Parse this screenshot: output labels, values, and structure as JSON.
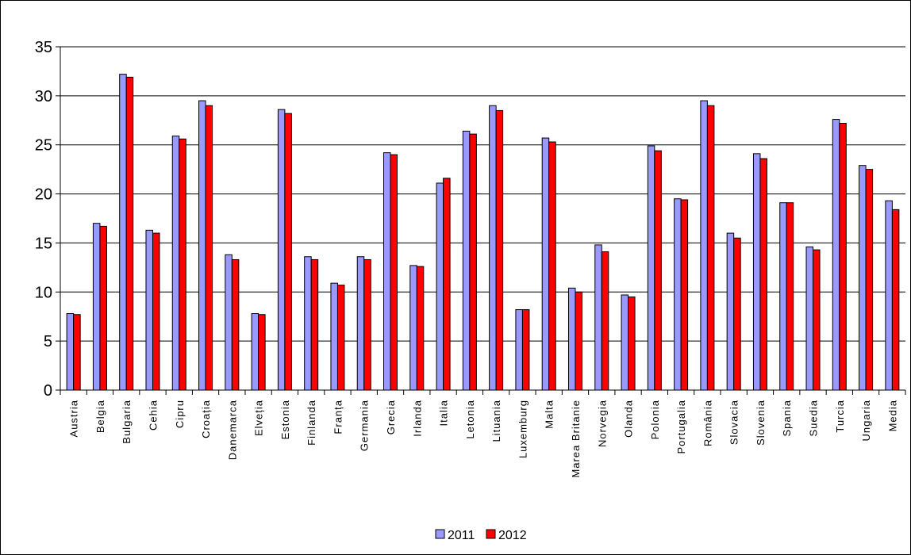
{
  "chart_data": {
    "type": "bar",
    "title": "",
    "xlabel": "",
    "ylabel": "",
    "ylim": [
      0,
      35
    ],
    "yticks": [
      0,
      5,
      10,
      15,
      20,
      25,
      30,
      35
    ],
    "grid": true,
    "legend_position": "bottom-center",
    "categories": [
      "Austria",
      "Belgia",
      "Bulgaria",
      "Cehia",
      "Cipru",
      "Croația",
      "Danemarca",
      "Elveția",
      "Estonia",
      "Finlanda",
      "Franța",
      "Germania",
      "Grecia",
      "Irlanda",
      "Italia",
      "Letonia",
      "Lituania",
      "Luxemburg",
      "Malta",
      "Marea Britanie",
      "Norvegia",
      "Olanda",
      "Polonia",
      "Portugalia",
      "România",
      "Slovacia",
      "Slovenia",
      "Spania",
      "Suedia",
      "Turcia",
      "Ungaria",
      "Media"
    ],
    "series": [
      {
        "name": "2011",
        "color": "#9999ff",
        "values": [
          7.8,
          17.0,
          32.2,
          16.3,
          25.9,
          29.5,
          13.8,
          7.8,
          28.6,
          13.6,
          10.9,
          13.6,
          24.2,
          12.7,
          21.1,
          26.4,
          29.0,
          8.2,
          25.7,
          10.4,
          14.8,
          9.7,
          24.9,
          19.5,
          29.5,
          16.0,
          24.1,
          19.1,
          14.6,
          27.6,
          22.9,
          19.3
        ]
      },
      {
        "name": "2012",
        "color": "#ff0000",
        "values": [
          7.7,
          16.7,
          31.9,
          16.0,
          25.6,
          29.0,
          13.3,
          7.7,
          28.2,
          13.3,
          10.7,
          13.3,
          24.0,
          12.6,
          21.6,
          26.1,
          28.5,
          8.2,
          25.3,
          10.0,
          14.1,
          9.5,
          24.4,
          19.4,
          29.0,
          15.5,
          23.6,
          19.1,
          14.3,
          27.2,
          22.5,
          18.4
        ]
      }
    ]
  }
}
